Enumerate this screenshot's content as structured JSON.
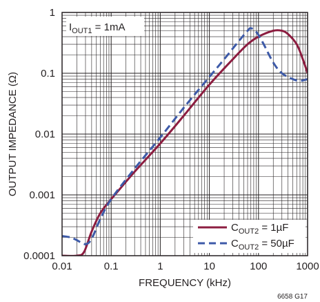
{
  "chart_data": {
    "type": "line",
    "xscale": "log",
    "yscale": "log",
    "xlim": [
      0.01,
      1000
    ],
    "ylim": [
      0.0001,
      1
    ],
    "xlabel": "FREQUENCY (kHz)",
    "ylabel": "OUTPUT IMPEDANCE (Ω)",
    "grid": true,
    "legend_position": "bottom-right",
    "x_tick_labels": [
      "0.01",
      "0.1",
      "1",
      "10",
      "100",
      "1000"
    ],
    "y_tick_labels": [
      "0.0001",
      "0.001",
      "0.01",
      "0.1",
      "1"
    ],
    "annotation": {
      "main": "I",
      "sub": "OUT1",
      "rest": " = 1mA"
    },
    "figure_code": "6658 G17",
    "series": [
      {
        "label_main": "C",
        "label_sub": "OUT2",
        "label_rest": " = 1µF",
        "color": "#8c1d40",
        "dash": "solid",
        "x": [
          0.01,
          0.02,
          0.028,
          0.04,
          0.06,
          0.1,
          0.15,
          0.3,
          1,
          3,
          10,
          30,
          60,
          100,
          200,
          300,
          400,
          600,
          800,
          1000
        ],
        "y": [
          0.0001,
          0.0001,
          0.000115,
          0.00025,
          0.0005,
          0.00085,
          0.00125,
          0.0024,
          0.007,
          0.02,
          0.065,
          0.17,
          0.3,
          0.4,
          0.5,
          0.5,
          0.44,
          0.3,
          0.17,
          0.1
        ]
      },
      {
        "label_main": "C",
        "label_sub": "OUT2",
        "label_rest": " = 50µF",
        "color": "#3d5aa8",
        "dash": "dashed",
        "x": [
          0.01,
          0.015,
          0.02,
          0.03,
          0.04,
          0.06,
          0.1,
          0.3,
          1,
          3,
          10,
          20,
          40,
          60,
          70,
          90,
          120,
          200,
          300,
          500,
          700,
          1000
        ],
        "y": [
          0.00021,
          0.0002,
          0.00018,
          0.000155,
          0.00019,
          0.0004,
          0.00085,
          0.0027,
          0.0088,
          0.027,
          0.087,
          0.17,
          0.34,
          0.5,
          0.55,
          0.48,
          0.33,
          0.15,
          0.1,
          0.08,
          0.075,
          0.08
        ]
      }
    ]
  }
}
